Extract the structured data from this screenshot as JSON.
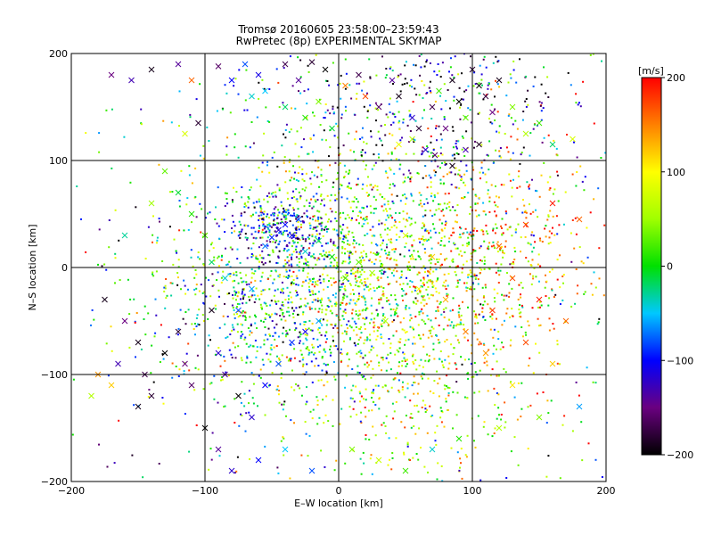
{
  "chart_data": {
    "type": "scatter",
    "title": "Tromsø 20160605 23:58:00–23:59:43",
    "subtitle": "RwPretec (8p) EXPERIMENTAL SKYMAP",
    "xlabel": "E–W location [km]",
    "ylabel": "N–S location [km]",
    "xlim": [
      -200,
      200
    ],
    "ylim": [
      -200,
      200
    ],
    "xticks": [
      -200,
      -100,
      0,
      100,
      200
    ],
    "yticks": [
      -200,
      -100,
      0,
      100,
      200
    ],
    "grid": true,
    "colorbar": {
      "label": "[m/s]",
      "min": -200,
      "max": 200,
      "ticks": [
        200,
        100,
        0,
        -100,
        -200
      ]
    },
    "markers": [
      "dot",
      "x"
    ],
    "series": [
      {
        "marker": "x",
        "points": [
          [
            -170,
            180,
            -150
          ],
          [
            -155,
            175,
            -130
          ],
          [
            -140,
            185,
            -190
          ],
          [
            -120,
            190,
            -140
          ],
          [
            -110,
            175,
            160
          ],
          [
            -105,
            135,
            -180
          ],
          [
            -115,
            125,
            80
          ],
          [
            -90,
            188,
            -160
          ],
          [
            -80,
            175,
            -100
          ],
          [
            -70,
            190,
            -80
          ],
          [
            -60,
            180,
            -110
          ],
          [
            -55,
            165,
            -50
          ],
          [
            -40,
            190,
            -170
          ],
          [
            -30,
            175,
            -140
          ],
          [
            -20,
            192,
            -180
          ],
          [
            -10,
            185,
            -200
          ],
          [
            -65,
            160,
            -40
          ],
          [
            -40,
            150,
            -20
          ],
          [
            -25,
            140,
            10
          ],
          [
            -15,
            155,
            40
          ],
          [
            -5,
            130,
            -10
          ],
          [
            5,
            170,
            150
          ],
          [
            15,
            180,
            -170
          ],
          [
            20,
            160,
            170
          ],
          [
            30,
            150,
            -160
          ],
          [
            40,
            175,
            -140
          ],
          [
            45,
            160,
            -190
          ],
          [
            55,
            140,
            -120
          ],
          [
            60,
            130,
            -180
          ],
          [
            70,
            150,
            -170
          ],
          [
            75,
            165,
            20
          ],
          [
            80,
            130,
            -150
          ],
          [
            85,
            175,
            -190
          ],
          [
            90,
            155,
            -200
          ],
          [
            95,
            140,
            30
          ],
          [
            100,
            185,
            -180
          ],
          [
            105,
            170,
            -200
          ],
          [
            110,
            160,
            -175
          ],
          [
            115,
            145,
            -150
          ],
          [
            120,
            175,
            -190
          ],
          [
            130,
            150,
            40
          ],
          [
            140,
            125,
            60
          ],
          [
            150,
            135,
            20
          ],
          [
            160,
            115,
            -20
          ],
          [
            175,
            120,
            80
          ],
          [
            65,
            110,
            -120
          ],
          [
            72,
            105,
            -160
          ],
          [
            85,
            95,
            -190
          ],
          [
            95,
            110,
            -130
          ],
          [
            105,
            115,
            -185
          ],
          [
            55,
            120,
            60
          ],
          [
            45,
            115,
            90
          ],
          [
            -175,
            -30,
            -190
          ],
          [
            -160,
            -50,
            -150
          ],
          [
            -150,
            -70,
            -190
          ],
          [
            -165,
            -90,
            -130
          ],
          [
            -145,
            -100,
            -170
          ],
          [
            -140,
            -120,
            -180
          ],
          [
            -130,
            -80,
            -200
          ],
          [
            -120,
            -60,
            -180
          ],
          [
            -115,
            -90,
            -150
          ],
          [
            -110,
            -110,
            -160
          ],
          [
            -95,
            -40,
            -190
          ],
          [
            -90,
            -80,
            -120
          ],
          [
            -85,
            -100,
            -140
          ],
          [
            -75,
            -120,
            -200
          ],
          [
            -65,
            -140,
            -120
          ],
          [
            -55,
            -110,
            -100
          ],
          [
            -45,
            -90,
            -80
          ],
          [
            -35,
            -70,
            -90
          ],
          [
            -25,
            -60,
            -110
          ],
          [
            -15,
            -50,
            -60
          ],
          [
            -170,
            -110,
            120
          ],
          [
            -180,
            -100,
            140
          ],
          [
            -185,
            -120,
            60
          ],
          [
            -150,
            -130,
            -190
          ],
          [
            -100,
            -150,
            -200
          ],
          [
            -90,
            -170,
            -140
          ],
          [
            -80,
            -190,
            -120
          ],
          [
            -60,
            -180,
            -100
          ],
          [
            -40,
            -170,
            -50
          ],
          [
            -20,
            -190,
            -80
          ],
          [
            10,
            -170,
            40
          ],
          [
            30,
            -180,
            70
          ],
          [
            50,
            -190,
            20
          ],
          [
            70,
            -170,
            -40
          ],
          [
            90,
            -160,
            10
          ],
          [
            120,
            -150,
            60
          ],
          [
            150,
            -140,
            40
          ],
          [
            180,
            -130,
            -60
          ],
          [
            130,
            -110,
            110
          ],
          [
            110,
            -80,
            140
          ],
          [
            140,
            -70,
            170
          ],
          [
            160,
            -90,
            120
          ],
          [
            170,
            -50,
            160
          ],
          [
            150,
            -30,
            190
          ],
          [
            130,
            -10,
            170
          ],
          [
            120,
            20,
            160
          ],
          [
            140,
            40,
            180
          ],
          [
            160,
            60,
            190
          ],
          [
            180,
            45,
            160
          ],
          [
            115,
            -40,
            180
          ],
          [
            95,
            -60,
            150
          ],
          [
            80,
            -30,
            130
          ],
          [
            70,
            10,
            120
          ],
          [
            60,
            -20,
            100
          ],
          [
            50,
            30,
            80
          ],
          [
            35,
            -50,
            60
          ],
          [
            -45,
            35,
            -120
          ],
          [
            -40,
            40,
            -100
          ],
          [
            -35,
            30,
            -110
          ],
          [
            -50,
            28,
            -90
          ],
          [
            -30,
            45,
            -80
          ],
          [
            -55,
            20,
            -70
          ],
          [
            -25,
            15,
            -40
          ],
          [
            -15,
            25,
            -20
          ],
          [
            -5,
            10,
            0
          ],
          [
            5,
            -10,
            20
          ],
          [
            15,
            5,
            30
          ],
          [
            25,
            -5,
            50
          ],
          [
            -65,
            -20,
            -60
          ],
          [
            -75,
            -40,
            -80
          ],
          [
            -85,
            -10,
            -40
          ],
          [
            -95,
            5,
            -20
          ],
          [
            -100,
            30,
            20
          ],
          [
            -110,
            50,
            10
          ],
          [
            -120,
            70,
            -10
          ],
          [
            -130,
            90,
            30
          ],
          [
            -140,
            60,
            50
          ],
          [
            -160,
            30,
            -30
          ]
        ]
      },
      {
        "marker": "dot",
        "clusters": [
          {
            "center": [
              0,
              0
            ],
            "spread": [
              70,
              60
            ],
            "count": 1400,
            "vmean": 20,
            "vspread": 60
          },
          {
            "center": [
              -40,
              35
            ],
            "spread": [
              20,
              15
            ],
            "count": 220,
            "vmean": -120,
            "vspread": 40
          },
          {
            "center": [
              40,
              -10
            ],
            "spread": [
              60,
              70
            ],
            "count": 500,
            "vmean": 90,
            "vspread": 60
          },
          {
            "center": [
              110,
              10
            ],
            "spread": [
              40,
              60
            ],
            "count": 300,
            "vmean": 160,
            "vspread": 40
          },
          {
            "center": [
              70,
              150
            ],
            "spread": [
              60,
              40
            ],
            "count": 380,
            "vmean": -110,
            "vspread": 90
          },
          {
            "center": [
              -50,
              -40
            ],
            "spread": [
              40,
              40
            ],
            "count": 250,
            "vmean": -80,
            "vspread": 70
          },
          {
            "center": [
              50,
              -120
            ],
            "spread": [
              40,
              60
            ],
            "count": 250,
            "vmean": 60,
            "vspread": 60
          },
          {
            "center": [
              0,
              0
            ],
            "spread": [
              130,
              130
            ],
            "count": 700,
            "vmean": 0,
            "vspread": 110
          }
        ]
      }
    ]
  }
}
